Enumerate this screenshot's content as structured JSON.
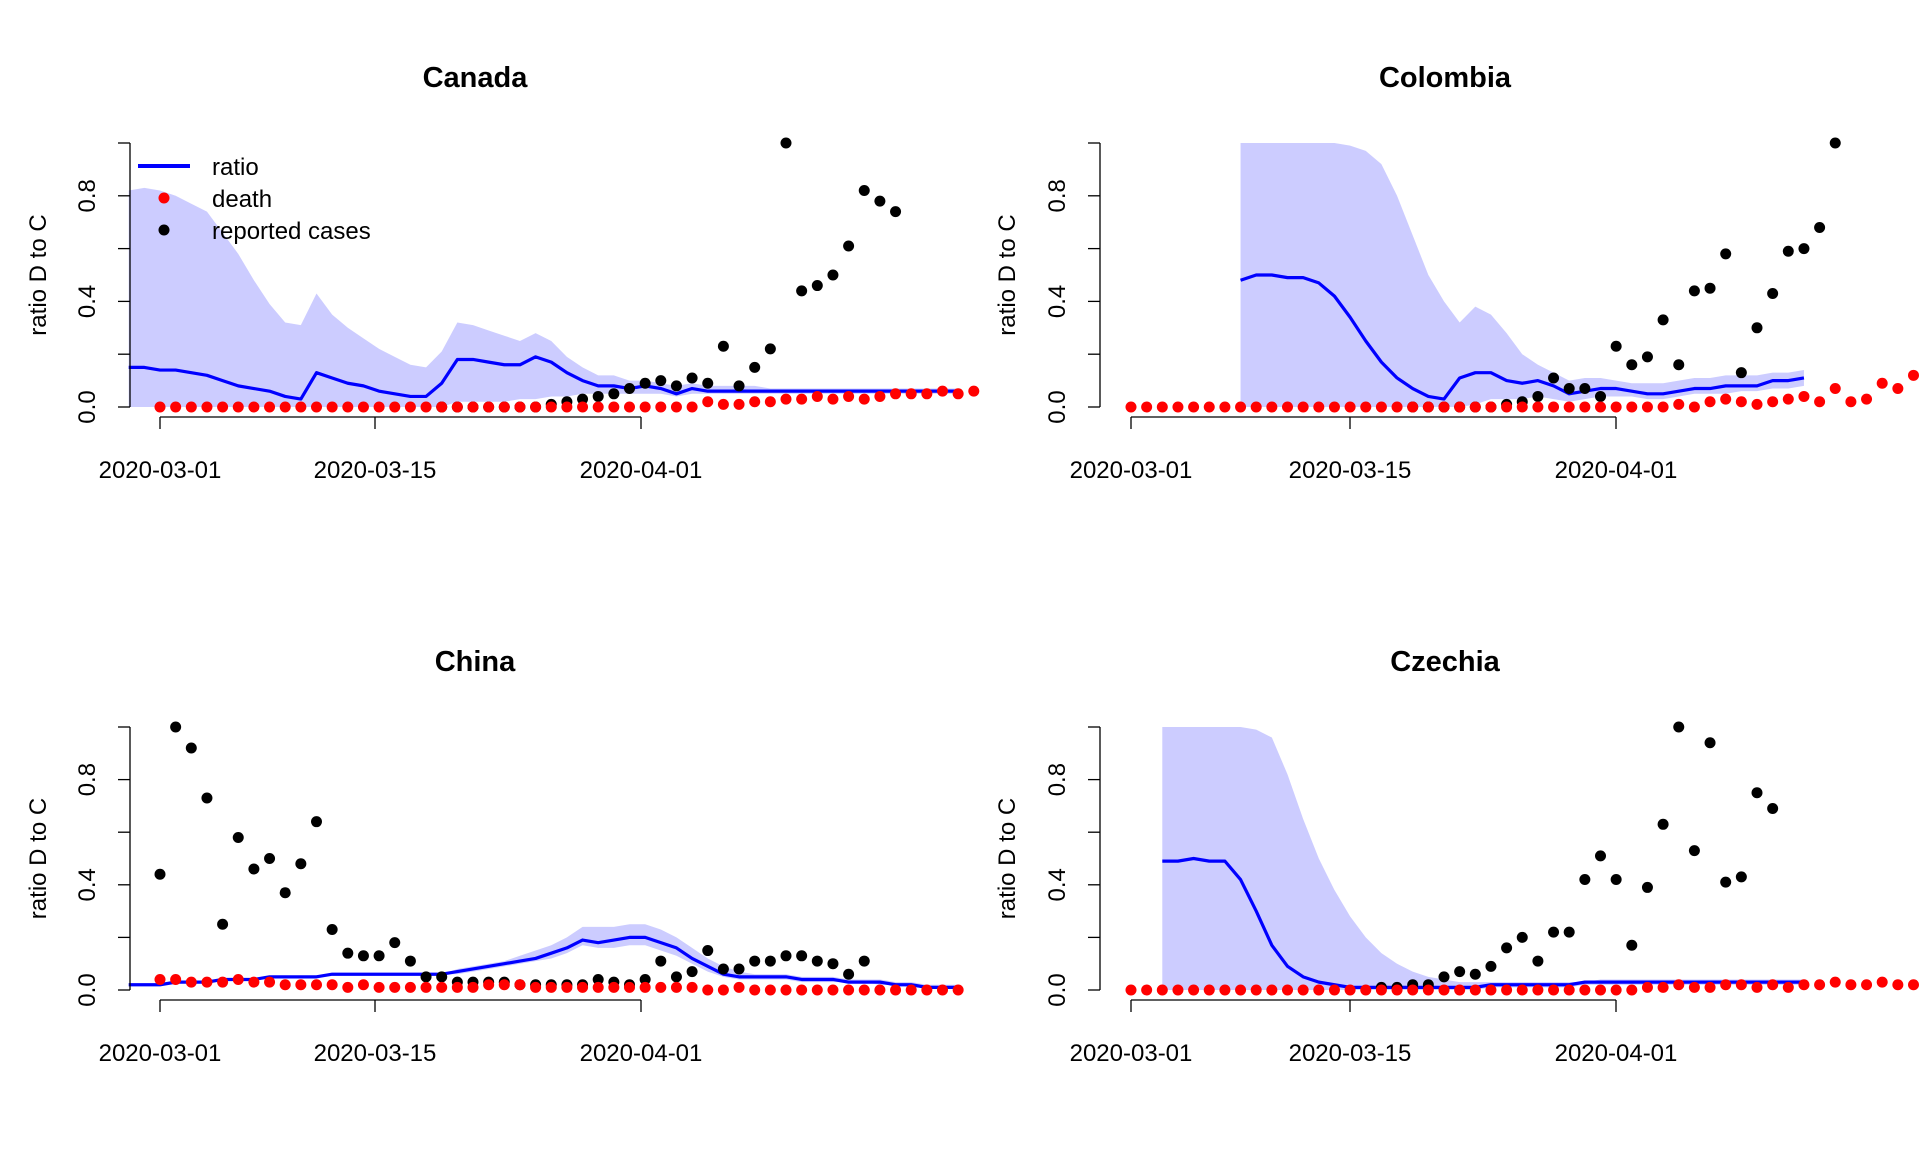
{
  "legend": {
    "items": [
      {
        "label": "ratio",
        "symbol": "line",
        "color": "#0000FF"
      },
      {
        "label": "death",
        "symbol": "point",
        "color": "#FF0000"
      },
      {
        "label": "reported cases",
        "symbol": "point",
        "color": "#000000"
      }
    ]
  },
  "colors": {
    "ratio": "#0000FF",
    "band": "#CCCCFF",
    "death": "#FF0000",
    "cases": "#000000"
  },
  "chart_data": [
    {
      "type": "line",
      "title": "Canada",
      "xlabel": "",
      "ylabel": "ratio D to C",
      "x_start": "2020-02-28",
      "x_ticks": [
        "2020-03-01",
        "2020-03-15",
        "2020-04-01"
      ],
      "y_ticks": [
        "0.0",
        "0.4",
        "0.8"
      ],
      "ylim": [
        0,
        1
      ],
      "legend_position": "top-left",
      "ratio": [
        0.15,
        0.15,
        0.14,
        0.14,
        0.13,
        0.12,
        0.1,
        0.08,
        0.07,
        0.06,
        0.04,
        0.03,
        0.13,
        0.11,
        0.09,
        0.08,
        0.06,
        0.05,
        0.04,
        0.04,
        0.09,
        0.18,
        0.18,
        0.17,
        0.16,
        0.16,
        0.19,
        0.17,
        0.13,
        0.1,
        0.08,
        0.08,
        0.07,
        0.08,
        0.07,
        0.05,
        0.07,
        0.06,
        0.06,
        0.06,
        0.06,
        0.06,
        0.06,
        0.06,
        0.06,
        0.06,
        0.06,
        0.06,
        0.06,
        0.06,
        0.06,
        0.06,
        0.06,
        0.06
      ],
      "band_upper": [
        0.82,
        0.83,
        0.82,
        0.8,
        0.77,
        0.74,
        0.66,
        0.58,
        0.48,
        0.39,
        0.32,
        0.31,
        0.43,
        0.35,
        0.3,
        0.26,
        0.22,
        0.19,
        0.16,
        0.15,
        0.21,
        0.32,
        0.31,
        0.29,
        0.27,
        0.25,
        0.28,
        0.25,
        0.19,
        0.15,
        0.12,
        0.12,
        0.1,
        0.1,
        0.09,
        0.08,
        0.09,
        0.08,
        0.08,
        0.08,
        0.08,
        0.07,
        0.07,
        0.07,
        0.07,
        0.07,
        0.07,
        0.07,
        0.07,
        0.07,
        0.07,
        0.07,
        0.07,
        0.07
      ],
      "band_lower": [
        0,
        0,
        0,
        0,
        0,
        0,
        0,
        0,
        0,
        0,
        0,
        0,
        0,
        0,
        0,
        0,
        0,
        0,
        0,
        0,
        0,
        0.02,
        0.02,
        0.02,
        0.02,
        0.03,
        0.03,
        0.04,
        0.04,
        0.05,
        0.05,
        0.05,
        0.05,
        0.05,
        0.05,
        0.04,
        0.05,
        0.05,
        0.05,
        0.05,
        0.05,
        0.05,
        0.05,
        0.05,
        0.05,
        0.05,
        0.05,
        0.05,
        0.05,
        0.05,
        0.05,
        0.05,
        0.05,
        0.05
      ],
      "death_start": 2,
      "death": [
        0,
        0,
        0,
        0,
        0,
        0,
        0,
        0,
        0,
        0,
        0,
        0,
        0,
        0,
        0,
        0,
        0,
        0,
        0,
        0,
        0,
        0,
        0,
        0,
        0,
        0,
        0,
        0,
        0,
        0,
        0,
        0,
        0,
        0,
        0,
        0.02,
        0.01,
        0.01,
        0.02,
        0.02,
        0.03,
        0.03,
        0.04,
        0.03,
        0.04,
        0.03,
        0.04,
        0.05,
        0.05,
        0.05,
        0.06,
        0.05,
        0.06
      ],
      "cases_start": 20,
      "cases": [
        0,
        0,
        0,
        0,
        0,
        0,
        0,
        0.01,
        0.02,
        0.03,
        0.04,
        0.05,
        0.07,
        0.09,
        0.1,
        0.08,
        0.11,
        0.09,
        0.23,
        0.08,
        0.15,
        0.22,
        1.0,
        0.44,
        0.46,
        0.5,
        0.61,
        0.82,
        0.78,
        0.74
      ],
      "band_start": 0
    },
    {
      "type": "line",
      "title": "Colombia",
      "xlabel": "",
      "ylabel": "ratio D to C",
      "x_start": "2020-02-28",
      "x_ticks": [
        "2020-03-01",
        "2020-03-15",
        "2020-04-01"
      ],
      "y_ticks": [
        "0.0",
        "0.4",
        "0.8"
      ],
      "ylim": [
        0,
        1
      ],
      "band_start": 9,
      "ratio": [
        0.48,
        0.5,
        0.5,
        0.49,
        0.49,
        0.47,
        0.42,
        0.34,
        0.25,
        0.17,
        0.11,
        0.07,
        0.04,
        0.03,
        0.11,
        0.13,
        0.13,
        0.1,
        0.09,
        0.1,
        0.08,
        0.05,
        0.06,
        0.07,
        0.07,
        0.06,
        0.05,
        0.05,
        0.06,
        0.07,
        0.07,
        0.08,
        0.08,
        0.08,
        0.1,
        0.1,
        0.11
      ],
      "band_upper": [
        1,
        1,
        1,
        1,
        1,
        1,
        1,
        0.99,
        0.97,
        0.92,
        0.8,
        0.65,
        0.5,
        0.4,
        0.32,
        0.38,
        0.35,
        0.28,
        0.2,
        0.16,
        0.13,
        0.1,
        0.11,
        0.11,
        0.1,
        0.09,
        0.09,
        0.09,
        0.1,
        0.11,
        0.11,
        0.12,
        0.12,
        0.12,
        0.13,
        0.13,
        0.14
      ],
      "band_lower": [
        0,
        0,
        0,
        0,
        0,
        0,
        0,
        0,
        0,
        0,
        0,
        0,
        0,
        0,
        0,
        0.01,
        0.03,
        0.03,
        0.03,
        0.04,
        0.03,
        0.02,
        0.03,
        0.04,
        0.04,
        0.04,
        0.03,
        0.03,
        0.04,
        0.05,
        0.05,
        0.05,
        0.06,
        0.06,
        0.07,
        0.07,
        0.08
      ],
      "death_start": 2,
      "death": [
        0,
        0,
        0,
        0,
        0,
        0,
        0,
        0,
        0,
        0,
        0,
        0,
        0,
        0,
        0,
        0,
        0,
        0,
        0,
        0,
        0,
        0,
        0,
        0,
        0,
        0,
        0,
        0,
        0,
        0,
        0,
        0,
        0,
        0,
        0,
        0.01,
        0,
        0.02,
        0.03,
        0.02,
        0.01,
        0.02,
        0.03,
        0.04,
        0.02,
        0.07,
        0.02,
        0.03,
        0.09,
        0.07,
        0.12
      ],
      "cases_start": 20,
      "cases": [
        0,
        0,
        0,
        0,
        0,
        0,
        0.01,
        0.02,
        0.04,
        0.11,
        0.07,
        0.07,
        0.04,
        0.23,
        0.16,
        0.19,
        0.33,
        0.16,
        0.44,
        0.45,
        0.58,
        0.13,
        0.3,
        0.43,
        0.59,
        0.6,
        0.68,
        1.0
      ]
    },
    {
      "type": "line",
      "title": "China",
      "xlabel": "",
      "ylabel": "ratio D to C",
      "x_start": "2020-02-28",
      "x_ticks": [
        "2020-03-01",
        "2020-03-15",
        "2020-04-01"
      ],
      "y_ticks": [
        "0.0",
        "0.4",
        "0.8"
      ],
      "ylim": [
        0,
        1
      ],
      "band_start": 0,
      "ratio": [
        0.02,
        0.02,
        0.02,
        0.03,
        0.03,
        0.03,
        0.04,
        0.04,
        0.04,
        0.05,
        0.05,
        0.05,
        0.05,
        0.06,
        0.06,
        0.06,
        0.06,
        0.06,
        0.06,
        0.06,
        0.06,
        0.07,
        0.08,
        0.09,
        0.1,
        0.11,
        0.12,
        0.14,
        0.16,
        0.19,
        0.18,
        0.19,
        0.2,
        0.2,
        0.18,
        0.16,
        0.12,
        0.09,
        0.06,
        0.05,
        0.05,
        0.05,
        0.05,
        0.04,
        0.04,
        0.04,
        0.03,
        0.03,
        0.03,
        0.02,
        0.02,
        0.01,
        0.01,
        0.01
      ],
      "band_upper": [
        0.02,
        0.02,
        0.02,
        0.03,
        0.03,
        0.03,
        0.04,
        0.04,
        0.04,
        0.05,
        0.05,
        0.05,
        0.05,
        0.06,
        0.06,
        0.06,
        0.06,
        0.06,
        0.06,
        0.06,
        0.06,
        0.08,
        0.09,
        0.1,
        0.11,
        0.13,
        0.15,
        0.17,
        0.2,
        0.24,
        0.24,
        0.24,
        0.25,
        0.25,
        0.23,
        0.2,
        0.16,
        0.12,
        0.09,
        0.07,
        0.06,
        0.06,
        0.06,
        0.05,
        0.05,
        0.05,
        0.04,
        0.04,
        0.04,
        0.03,
        0.03,
        0.02,
        0.02,
        0.02
      ],
      "band_lower": [
        0.02,
        0.02,
        0.02,
        0.03,
        0.03,
        0.03,
        0.04,
        0.04,
        0.04,
        0.05,
        0.05,
        0.05,
        0.05,
        0.06,
        0.06,
        0.06,
        0.06,
        0.06,
        0.06,
        0.06,
        0.06,
        0.06,
        0.07,
        0.08,
        0.09,
        0.1,
        0.11,
        0.12,
        0.14,
        0.17,
        0.16,
        0.16,
        0.17,
        0.17,
        0.15,
        0.13,
        0.1,
        0.07,
        0.05,
        0.04,
        0.04,
        0.04,
        0.04,
        0.03,
        0.03,
        0.03,
        0.03,
        0.03,
        0.02,
        0.02,
        0.01,
        0.01,
        0.01,
        0.01
      ],
      "death_start": 2,
      "death": [
        0.04,
        0.04,
        0.03,
        0.03,
        0.03,
        0.04,
        0.03,
        0.03,
        0.02,
        0.02,
        0.02,
        0.02,
        0.01,
        0.02,
        0.01,
        0.01,
        0.01,
        0.01,
        0.01,
        0.01,
        0.01,
        0.02,
        0.02,
        0.02,
        0.01,
        0.01,
        0.01,
        0.01,
        0.01,
        0.01,
        0.01,
        0.01,
        0.01,
        0.01,
        0.01,
        0,
        0,
        0.01,
        0,
        0,
        0,
        0,
        0,
        0,
        0,
        0,
        0,
        0,
        0,
        0,
        0,
        0
      ],
      "cases_start": 2,
      "cases": [
        0.44,
        1.0,
        0.92,
        0.73,
        0.25,
        0.58,
        0.46,
        0.5,
        0.37,
        0.48,
        0.64,
        0.23,
        0.14,
        0.13,
        0.13,
        0.18,
        0.11,
        0.05,
        0.05,
        0.03,
        0.03,
        0.03,
        0.03,
        0.02,
        0.02,
        0.02,
        0.02,
        0.02,
        0.04,
        0.03,
        0.02,
        0.04,
        0.11,
        0.05,
        0.07,
        0.15,
        0.08,
        0.08,
        0.11,
        0.11,
        0.13,
        0.13,
        0.11,
        0.1,
        0.06,
        0.11
      ]
    },
    {
      "type": "line",
      "title": "Czechia",
      "xlabel": "",
      "ylabel": "ratio D to C",
      "x_start": "2020-02-28",
      "x_ticks": [
        "2020-03-01",
        "2020-03-15",
        "2020-04-01"
      ],
      "y_ticks": [
        "0.0",
        "0.4",
        "0.8"
      ],
      "ylim": [
        0,
        1
      ],
      "band_start": 4,
      "ratio": [
        0.49,
        0.49,
        0.5,
        0.49,
        0.49,
        0.42,
        0.3,
        0.17,
        0.09,
        0.05,
        0.03,
        0.02,
        0.01,
        0.01,
        0.01,
        0.01,
        0.01,
        0.01,
        0.01,
        0.01,
        0.01,
        0.02,
        0.02,
        0.02,
        0.02,
        0.02,
        0.02,
        0.03,
        0.03,
        0.03,
        0.03,
        0.03,
        0.03,
        0.03,
        0.03,
        0.03,
        0.03,
        0.03,
        0.03,
        0.03,
        0.03,
        0.03
      ],
      "band_upper": [
        1,
        1,
        1,
        1,
        1,
        1,
        0.99,
        0.96,
        0.82,
        0.65,
        0.5,
        0.38,
        0.28,
        0.2,
        0.14,
        0.1,
        0.07,
        0.05,
        0.04,
        0.03,
        0.03,
        0.03,
        0.03,
        0.03,
        0.03,
        0.03,
        0.03,
        0.03,
        0.04,
        0.04,
        0.04,
        0.04,
        0.04,
        0.04,
        0.04,
        0.04,
        0.04,
        0.04,
        0.04,
        0.04,
        0.04,
        0.04
      ],
      "band_lower": [
        0,
        0,
        0,
        0,
        0,
        0,
        0,
        0,
        0,
        0,
        0,
        0,
        0,
        0,
        0,
        0,
        0,
        0,
        0,
        0,
        0,
        0.01,
        0.01,
        0.01,
        0.01,
        0.01,
        0.01,
        0.02,
        0.02,
        0.02,
        0.02,
        0.02,
        0.02,
        0.02,
        0.02,
        0.02,
        0.02,
        0.02,
        0.02,
        0.02,
        0.02,
        0.02
      ],
      "death_start": 2,
      "death": [
        0,
        0,
        0,
        0,
        0,
        0,
        0,
        0,
        0,
        0,
        0,
        0,
        0,
        0,
        0,
        0,
        0,
        0,
        0,
        0,
        0,
        0,
        0,
        0,
        0,
        0,
        0,
        0,
        0,
        0,
        0,
        0,
        0,
        0.01,
        0.01,
        0.02,
        0.01,
        0.01,
        0.02,
        0.02,
        0.01,
        0.02,
        0.01,
        0.02,
        0.02,
        0.03,
        0.02,
        0.02,
        0.03,
        0.02,
        0.02
      ],
      "cases_start": 18,
      "cases": [
        0.01,
        0.01,
        0.02,
        0.02,
        0.05,
        0.07,
        0.06,
        0.09,
        0.16,
        0.2,
        0.11,
        0.22,
        0.22,
        0.42,
        0.51,
        0.42,
        0.17,
        0.39,
        0.63,
        1.0,
        0.53,
        0.94,
        0.41,
        0.43,
        0.75,
        0.69
      ]
    }
  ]
}
